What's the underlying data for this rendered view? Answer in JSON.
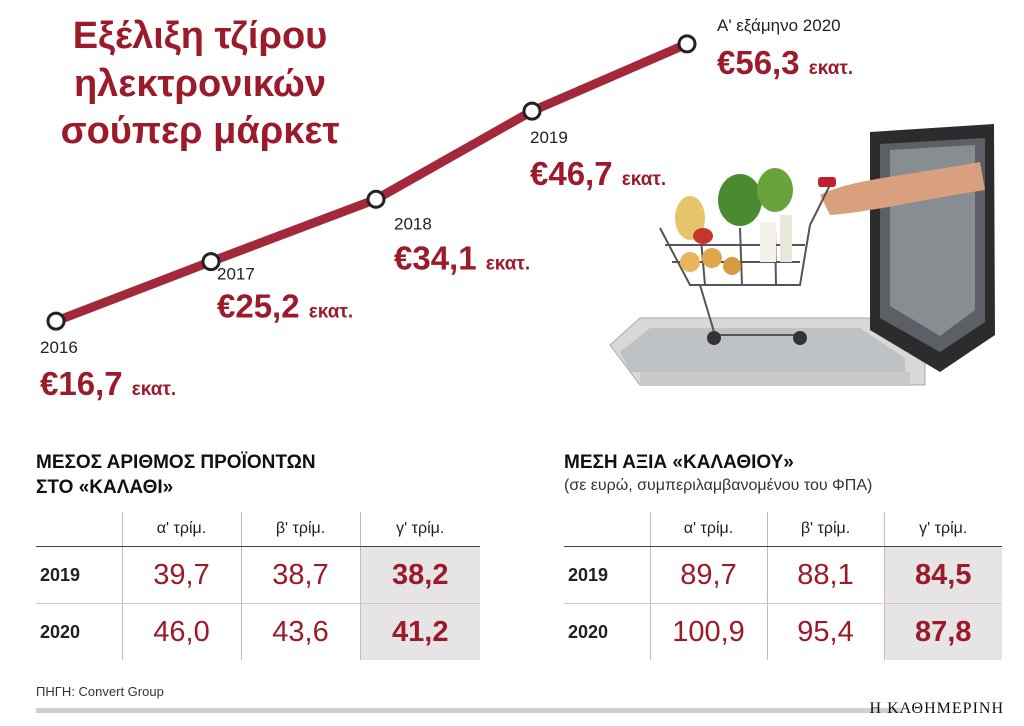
{
  "colors": {
    "accent": "#9b1b2b",
    "line": "#a3283a",
    "highlight": "#e6e4e4"
  },
  "chart_data": {
    "type": "line",
    "title_lines": [
      "Εξέλιξη τζίρου",
      "ηλεκτρονικών",
      "σούπερ μάρκετ"
    ],
    "x": [
      "2016",
      "2017",
      "2018",
      "2019",
      "Α' εξάμηνο 2020"
    ],
    "values": [
      16.7,
      25.2,
      34.1,
      46.7,
      56.3
    ],
    "value_labels": [
      "€16,7",
      "€25,2",
      "€34,1",
      "€46,7",
      "€56,3"
    ],
    "unit_label": "εκατ.",
    "ylim": [
      0,
      60
    ]
  },
  "image_label": "laptop-shopping-cart-image",
  "table_products": {
    "title": "ΜΕΣΟΣ ΑΡΙΘΜΟΣ ΠΡΟΪΟΝΤΩΝ\nΣΤΟ «ΚΑΛΑΘΙ»",
    "columns": [
      "α' τρίμ.",
      "β' τρίμ.",
      "γ' τρίμ."
    ],
    "rows": [
      {
        "year": "2019",
        "values": [
          "39,7",
          "38,7",
          "38,2"
        ]
      },
      {
        "year": "2020",
        "values": [
          "46,0",
          "43,6",
          "41,2"
        ]
      }
    ]
  },
  "table_basket": {
    "title": "ΜΕΣΗ ΑΞΙΑ «ΚΑΛΑΘΙΟΥ»",
    "subtitle": "(σε ευρώ, συμπεριλαμβανομένου του ΦΠΑ)",
    "columns": [
      "α' τρίμ.",
      "β' τρίμ.",
      "γ' τρίμ."
    ],
    "rows": [
      {
        "year": "2019",
        "values": [
          "89,7",
          "88,1",
          "84,5"
        ]
      },
      {
        "year": "2020",
        "values": [
          "100,9",
          "95,4",
          "87,8"
        ]
      }
    ]
  },
  "source": "ΠΗΓΗ: Convert Group",
  "brand": "Η ΚΑΘΗΜΕΡΙΝΗ"
}
